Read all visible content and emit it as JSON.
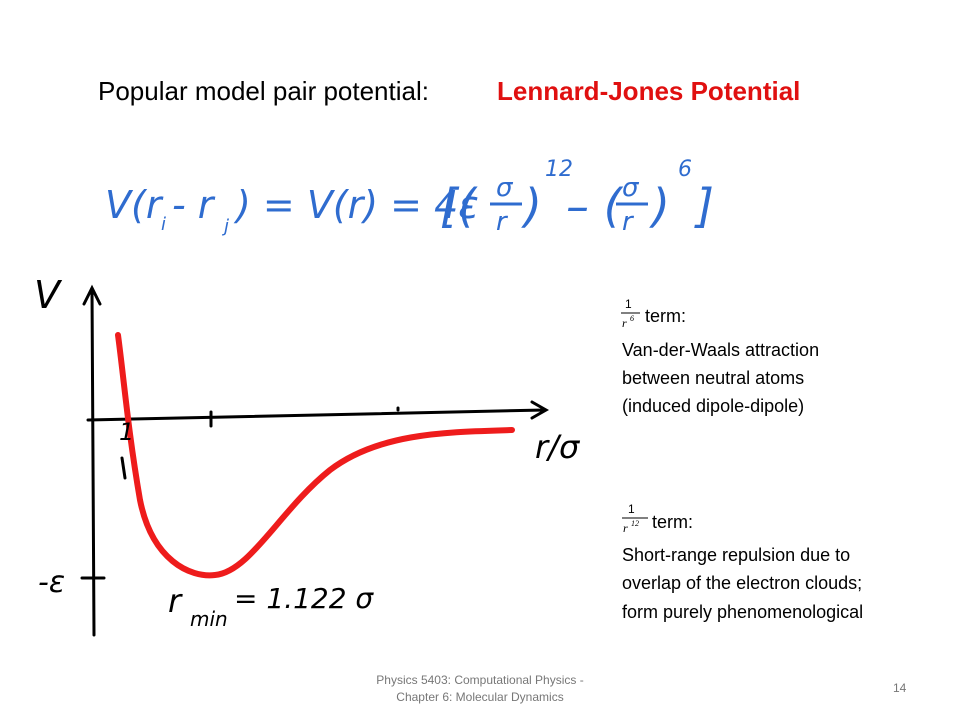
{
  "title": {
    "lead": "Popular model pair potential:",
    "highlight": "Lennard-Jones Potential"
  },
  "equation": {
    "tokens": [
      "V(r",
      "i",
      "- r",
      "j",
      ") = V(r) = 4ε",
      "[(",
      "σ",
      "r",
      ")",
      "12",
      "– (",
      "σ",
      "r",
      ")",
      "6",
      "]"
    ]
  },
  "sketch": {
    "y_label": "V",
    "x_label": "r/σ",
    "x_tick": "1",
    "y_tick": "-ε",
    "rmin_label": "r",
    "rmin_sub": "min",
    "rmin_value": "= 1.122 σ"
  },
  "notes": [
    {
      "numerator": "1",
      "denominator": "r",
      "power": "6",
      "head": "term:",
      "lines": [
        "Van-der-Waals attraction",
        "between neutral atoms",
        "(induced dipole-dipole)"
      ]
    },
    {
      "numerator": "1",
      "denominator": "r",
      "power": "12",
      "head": "term:",
      "lines": [
        "Short-range repulsion due to",
        "overlap of the electron clouds;",
        "form purely phenomenological"
      ]
    }
  ],
  "footer": {
    "lines": [
      "Physics 5403: Computational Physics -",
      "Chapter 6: Molecular Dynamics"
    ],
    "page": "14"
  }
}
